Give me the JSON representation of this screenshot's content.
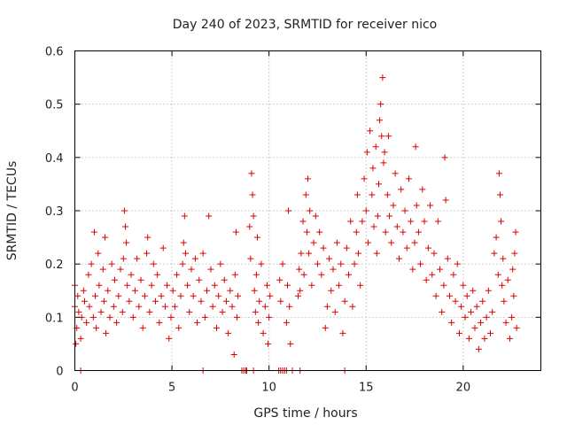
{
  "chart_data": {
    "type": "scatter",
    "title": "Day 240 of 2023, SRMTID for receiver nico",
    "xlabel": "GPS time / hours",
    "ylabel": "SRMTID / TECUs",
    "xlim": [
      0,
      24
    ],
    "ylim": [
      0,
      0.6
    ],
    "xticks": [
      0,
      5,
      10,
      15,
      20
    ],
    "xtick_labels": [
      "0",
      "5",
      "10",
      "15",
      "20"
    ],
    "yticks": [
      0,
      0.1,
      0.2,
      0.3,
      0.4,
      0.5,
      0.6
    ],
    "ytick_labels": [
      "0",
      "0.1",
      "0.2",
      "0.3",
      "0.4",
      "0.5",
      "0.6"
    ],
    "grid": true,
    "marker": "+",
    "color": "#dd0000",
    "series": [
      {
        "name": "SRMTID",
        "points": [
          [
            0.0,
            0.12
          ],
          [
            0.0,
            0.16
          ],
          [
            0.05,
            0.05
          ],
          [
            0.1,
            0.08
          ],
          [
            0.15,
            0.14
          ],
          [
            0.2,
            0.11
          ],
          [
            0.3,
            0.06
          ],
          [
            0.35,
            0.1
          ],
          [
            0.45,
            0.15
          ],
          [
            0.5,
            0.13
          ],
          [
            0.6,
            0.09
          ],
          [
            0.7,
            0.18
          ],
          [
            0.75,
            0.12
          ],
          [
            0.85,
            0.2
          ],
          [
            0.95,
            0.1
          ],
          [
            1.0,
            0.26
          ],
          [
            1.05,
            0.14
          ],
          [
            1.1,
            0.08
          ],
          [
            1.2,
            0.22
          ],
          [
            1.25,
            0.16
          ],
          [
            1.35,
            0.11
          ],
          [
            1.45,
            0.19
          ],
          [
            1.5,
            0.13
          ],
          [
            1.55,
            0.25
          ],
          [
            1.6,
            0.07
          ],
          [
            1.7,
            0.15
          ],
          [
            1.8,
            0.1
          ],
          [
            1.9,
            0.2
          ],
          [
            2.0,
            0.12
          ],
          [
            2.05,
            0.17
          ],
          [
            2.15,
            0.09
          ],
          [
            2.25,
            0.14
          ],
          [
            2.35,
            0.19
          ],
          [
            2.45,
            0.11
          ],
          [
            2.5,
            0.21
          ],
          [
            2.55,
            0.3
          ],
          [
            2.6,
            0.27
          ],
          [
            2.65,
            0.24
          ],
          [
            2.7,
            0.16
          ],
          [
            2.8,
            0.13
          ],
          [
            2.9,
            0.18
          ],
          [
            3.0,
            0.1
          ],
          [
            3.1,
            0.15
          ],
          [
            3.2,
            0.21
          ],
          [
            3.3,
            0.12
          ],
          [
            3.4,
            0.17
          ],
          [
            3.5,
            0.08
          ],
          [
            3.6,
            0.14
          ],
          [
            3.7,
            0.22
          ],
          [
            3.75,
            0.25
          ],
          [
            3.85,
            0.11
          ],
          [
            3.95,
            0.16
          ],
          [
            4.05,
            0.2
          ],
          [
            4.15,
            0.13
          ],
          [
            4.25,
            0.18
          ],
          [
            4.35,
            0.09
          ],
          [
            4.45,
            0.14
          ],
          [
            4.55,
            0.23
          ],
          [
            4.65,
            0.12
          ],
          [
            4.75,
            0.16
          ],
          [
            4.85,
            0.06
          ],
          [
            4.95,
            0.1
          ],
          [
            5.05,
            0.15
          ],
          [
            5.15,
            0.12
          ],
          [
            5.25,
            0.18
          ],
          [
            5.35,
            0.08
          ],
          [
            5.45,
            0.14
          ],
          [
            5.55,
            0.2
          ],
          [
            5.6,
            0.24
          ],
          [
            5.65,
            0.29
          ],
          [
            5.7,
            0.22
          ],
          [
            5.8,
            0.16
          ],
          [
            5.9,
            0.11
          ],
          [
            6.0,
            0.19
          ],
          [
            6.1,
            0.14
          ],
          [
            6.2,
            0.21
          ],
          [
            6.3,
            0.09
          ],
          [
            6.4,
            0.17
          ],
          [
            6.5,
            0.13
          ],
          [
            6.6,
            0.22
          ],
          [
            6.7,
            0.1
          ],
          [
            6.8,
            0.15
          ],
          [
            6.9,
            0.29
          ],
          [
            7.0,
            0.19
          ],
          [
            7.1,
            0.12
          ],
          [
            7.2,
            0.16
          ],
          [
            7.3,
            0.08
          ],
          [
            7.4,
            0.14
          ],
          [
            7.5,
            0.2
          ],
          [
            7.6,
            0.11
          ],
          [
            7.7,
            0.17
          ],
          [
            7.8,
            0.13
          ],
          [
            7.9,
            0.07
          ],
          [
            8.0,
            0.15
          ],
          [
            8.1,
            0.12
          ],
          [
            8.2,
            0.03
          ],
          [
            8.25,
            0.18
          ],
          [
            8.3,
            0.26
          ],
          [
            8.35,
            0.1
          ],
          [
            8.4,
            0.14
          ],
          [
            9.0,
            0.27
          ],
          [
            9.05,
            0.21
          ],
          [
            9.1,
            0.37
          ],
          [
            9.15,
            0.33
          ],
          [
            9.2,
            0.29
          ],
          [
            9.25,
            0.15
          ],
          [
            9.3,
            0.11
          ],
          [
            9.35,
            0.18
          ],
          [
            9.4,
            0.25
          ],
          [
            9.45,
            0.09
          ],
          [
            9.5,
            0.13
          ],
          [
            9.6,
            0.2
          ],
          [
            9.7,
            0.07
          ],
          [
            9.8,
            0.12
          ],
          [
            9.9,
            0.16
          ],
          [
            9.95,
            0.05
          ],
          [
            10.0,
            0.1
          ],
          [
            10.05,
            0.14
          ],
          [
            10.55,
            0.17
          ],
          [
            10.6,
            0.13
          ],
          [
            10.7,
            0.2
          ],
          [
            10.9,
            0.09
          ],
          [
            10.95,
            0.16
          ],
          [
            11.0,
            0.3
          ],
          [
            11.05,
            0.12
          ],
          [
            11.1,
            0.05
          ],
          [
            11.5,
            0.14
          ],
          [
            11.55,
            0.19
          ],
          [
            11.6,
            0.15
          ],
          [
            11.65,
            0.22
          ],
          [
            11.75,
            0.28
          ],
          [
            11.8,
            0.18
          ],
          [
            11.9,
            0.33
          ],
          [
            11.95,
            0.26
          ],
          [
            12.0,
            0.36
          ],
          [
            12.05,
            0.22
          ],
          [
            12.1,
            0.3
          ],
          [
            12.2,
            0.16
          ],
          [
            12.3,
            0.24
          ],
          [
            12.4,
            0.29
          ],
          [
            12.5,
            0.2
          ],
          [
            12.6,
            0.26
          ],
          [
            12.7,
            0.18
          ],
          [
            12.8,
            0.23
          ],
          [
            12.9,
            0.08
          ],
          [
            13.0,
            0.12
          ],
          [
            13.1,
            0.21
          ],
          [
            13.2,
            0.15
          ],
          [
            13.3,
            0.19
          ],
          [
            13.4,
            0.11
          ],
          [
            13.5,
            0.24
          ],
          [
            13.6,
            0.16
          ],
          [
            13.7,
            0.2
          ],
          [
            13.8,
            0.07
          ],
          [
            13.9,
            0.13
          ],
          [
            14.0,
            0.23
          ],
          [
            14.1,
            0.18
          ],
          [
            14.2,
            0.28
          ],
          [
            14.3,
            0.12
          ],
          [
            14.4,
            0.2
          ],
          [
            14.5,
            0.26
          ],
          [
            14.55,
            0.33
          ],
          [
            14.6,
            0.22
          ],
          [
            14.7,
            0.16
          ],
          [
            14.8,
            0.28
          ],
          [
            14.9,
            0.36
          ],
          [
            15.0,
            0.3
          ],
          [
            15.05,
            0.41
          ],
          [
            15.1,
            0.24
          ],
          [
            15.2,
            0.45
          ],
          [
            15.3,
            0.33
          ],
          [
            15.35,
            0.38
          ],
          [
            15.4,
            0.27
          ],
          [
            15.5,
            0.42
          ],
          [
            15.55,
            0.22
          ],
          [
            15.6,
            0.29
          ],
          [
            15.65,
            0.35
          ],
          [
            15.7,
            0.47
          ],
          [
            15.75,
            0.5
          ],
          [
            15.8,
            0.44
          ],
          [
            15.85,
            0.55
          ],
          [
            15.9,
            0.39
          ],
          [
            15.95,
            0.41
          ],
          [
            16.0,
            0.26
          ],
          [
            16.1,
            0.33
          ],
          [
            16.15,
            0.44
          ],
          [
            16.2,
            0.29
          ],
          [
            16.3,
            0.24
          ],
          [
            16.4,
            0.31
          ],
          [
            16.5,
            0.37
          ],
          [
            16.6,
            0.27
          ],
          [
            16.7,
            0.21
          ],
          [
            16.8,
            0.34
          ],
          [
            16.9,
            0.26
          ],
          [
            17.0,
            0.3
          ],
          [
            17.1,
            0.23
          ],
          [
            17.2,
            0.36
          ],
          [
            17.3,
            0.28
          ],
          [
            17.4,
            0.19
          ],
          [
            17.5,
            0.24
          ],
          [
            17.55,
            0.42
          ],
          [
            17.6,
            0.31
          ],
          [
            17.7,
            0.26
          ],
          [
            17.8,
            0.2
          ],
          [
            17.9,
            0.34
          ],
          [
            18.0,
            0.28
          ],
          [
            18.1,
            0.17
          ],
          [
            18.2,
            0.23
          ],
          [
            18.3,
            0.31
          ],
          [
            18.4,
            0.18
          ],
          [
            18.5,
            0.22
          ],
          [
            18.6,
            0.14
          ],
          [
            18.7,
            0.28
          ],
          [
            18.8,
            0.19
          ],
          [
            18.9,
            0.11
          ],
          [
            19.0,
            0.16
          ],
          [
            19.05,
            0.4
          ],
          [
            19.1,
            0.32
          ],
          [
            19.2,
            0.21
          ],
          [
            19.3,
            0.14
          ],
          [
            19.4,
            0.09
          ],
          [
            19.5,
            0.18
          ],
          [
            19.6,
            0.13
          ],
          [
            19.7,
            0.2
          ],
          [
            19.8,
            0.07
          ],
          [
            19.9,
            0.12
          ],
          [
            20.0,
            0.16
          ],
          [
            20.1,
            0.1
          ],
          [
            20.2,
            0.14
          ],
          [
            20.3,
            0.06
          ],
          [
            20.4,
            0.11
          ],
          [
            20.5,
            0.15
          ],
          [
            20.6,
            0.08
          ],
          [
            20.7,
            0.12
          ],
          [
            20.8,
            0.04
          ],
          [
            20.9,
            0.09
          ],
          [
            21.0,
            0.13
          ],
          [
            21.1,
            0.06
          ],
          [
            21.2,
            0.1
          ],
          [
            21.3,
            0.15
          ],
          [
            21.4,
            0.07
          ],
          [
            21.5,
            0.11
          ],
          [
            21.6,
            0.22
          ],
          [
            21.7,
            0.25
          ],
          [
            21.8,
            0.18
          ],
          [
            21.85,
            0.37
          ],
          [
            21.9,
            0.33
          ],
          [
            21.95,
            0.28
          ],
          [
            22.0,
            0.16
          ],
          [
            22.05,
            0.21
          ],
          [
            22.1,
            0.13
          ],
          [
            22.2,
            0.09
          ],
          [
            22.3,
            0.17
          ],
          [
            22.4,
            0.06
          ],
          [
            22.5,
            0.1
          ],
          [
            22.55,
            0.19
          ],
          [
            22.6,
            0.14
          ],
          [
            22.65,
            0.22
          ],
          [
            22.7,
            0.26
          ],
          [
            22.75,
            0.08
          ]
        ]
      },
      {
        "name": "gaps (zero-value)",
        "points": [
          [
            0.3,
            0.0
          ],
          [
            6.6,
            0.0
          ],
          [
            8.6,
            0.0
          ],
          [
            8.7,
            0.0
          ],
          [
            8.8,
            0.0
          ],
          [
            8.85,
            0.0
          ],
          [
            9.2,
            0.0
          ],
          [
            10.5,
            0.0
          ],
          [
            10.6,
            0.0
          ],
          [
            10.7,
            0.0
          ],
          [
            10.8,
            0.0
          ],
          [
            10.9,
            0.0
          ],
          [
            11.2,
            0.0
          ],
          [
            11.6,
            0.0
          ],
          [
            13.9,
            0.0
          ]
        ]
      }
    ]
  }
}
